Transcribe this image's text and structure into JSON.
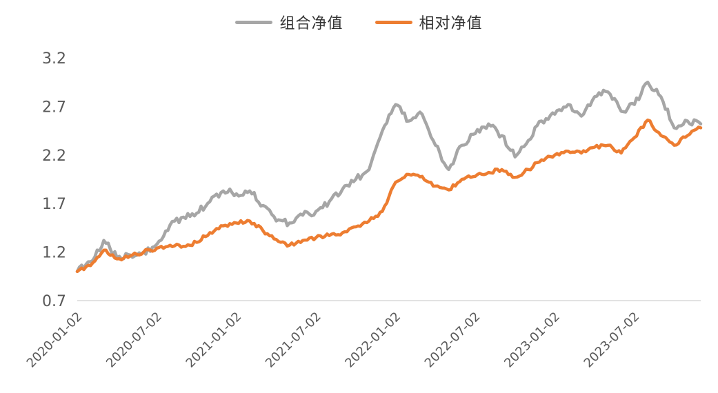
{
  "chart_data": {
    "type": "line",
    "title": "",
    "xlabel": "",
    "ylabel": "",
    "grid": false,
    "legend_position": "top-center",
    "ylim": [
      0.7,
      3.2
    ],
    "y_ticks": [
      0.7,
      1.2,
      1.7,
      2.2,
      2.7,
      3.2
    ],
    "x_unit": "months since 2020-01",
    "x_range": [
      0,
      47
    ],
    "x_tick_positions": [
      0,
      6,
      12,
      18,
      24,
      30,
      36,
      42
    ],
    "x_tick_labels": [
      "2020-01-02",
      "2020-07-02",
      "2021-01-02",
      "2021-07-02",
      "2022-01-02",
      "2022-07-02",
      "2023-01-02",
      "2023-07-02"
    ],
    "axis_color": "#d9d9d9",
    "tick_label_color": "#595959",
    "series": [
      {
        "name": "组合净值",
        "color": "#a6a6a6",
        "values": [
          1.0,
          1.1,
          1.32,
          1.14,
          1.17,
          1.2,
          1.28,
          1.48,
          1.56,
          1.6,
          1.72,
          1.83,
          1.8,
          1.83,
          1.68,
          1.52,
          1.5,
          1.58,
          1.62,
          1.72,
          1.85,
          1.95,
          2.05,
          2.45,
          2.72,
          2.55,
          2.62,
          2.3,
          2.05,
          2.3,
          2.42,
          2.52,
          2.4,
          2.18,
          2.35,
          2.55,
          2.62,
          2.72,
          2.6,
          2.8,
          2.85,
          2.65,
          2.72,
          2.95,
          2.8,
          2.48,
          2.55,
          2.52
        ]
      },
      {
        "name": "相对净值",
        "color": "#ed7d31",
        "values": [
          1.0,
          1.06,
          1.22,
          1.13,
          1.16,
          1.2,
          1.24,
          1.27,
          1.26,
          1.3,
          1.4,
          1.47,
          1.5,
          1.52,
          1.42,
          1.33,
          1.27,
          1.32,
          1.35,
          1.37,
          1.4,
          1.46,
          1.52,
          1.62,
          1.92,
          2.0,
          1.98,
          1.88,
          1.84,
          1.95,
          1.98,
          2.02,
          2.05,
          1.97,
          2.05,
          2.15,
          2.2,
          2.24,
          2.22,
          2.28,
          2.3,
          2.22,
          2.38,
          2.56,
          2.4,
          2.3,
          2.4,
          2.48
        ]
      }
    ]
  }
}
